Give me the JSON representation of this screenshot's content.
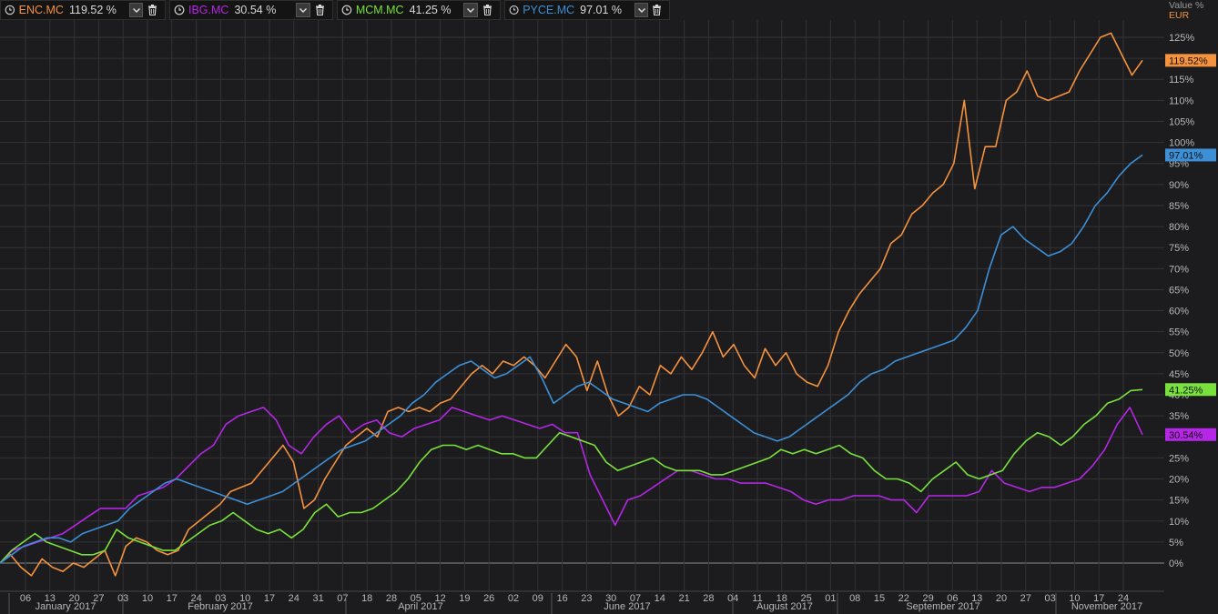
{
  "legend": [
    {
      "symbol": "ENC.MC",
      "value": "119.52 %",
      "color": "#f5923e"
    },
    {
      "symbol": "IBG.MC",
      "value": "30.54 %",
      "color": "#b526e6"
    },
    {
      "symbol": "MCM.MC",
      "value": "41.25 %",
      "color": "#79e13b"
    },
    {
      "symbol": "PYCE.MC",
      "value": "97.01 %",
      "color": "#3d8fd6"
    }
  ],
  "icons": {
    "clock": "clock-icon",
    "dropdown": "chevron-down-icon",
    "delete": "trash-icon"
  },
  "axis": {
    "y_title": "Value %",
    "currency": "EUR"
  },
  "chart_data": {
    "type": "line",
    "yunit": "%",
    "ylim": [
      -2,
      129
    ],
    "y_ticks": [
      "0%",
      "5%",
      "10%",
      "15%",
      "20%",
      "25%",
      "30%",
      "35%",
      "40%",
      "45%",
      "50%",
      "55%",
      "60%",
      "65%",
      "70%",
      "75%",
      "80%",
      "85%",
      "90%",
      "95%",
      "100%",
      "105%",
      "110%",
      "115%",
      "120%",
      "125%"
    ],
    "x_ticks": [
      "06",
      "13",
      "20",
      "27",
      "03",
      "10",
      "17",
      "24",
      "03",
      "10",
      "17",
      "24",
      "31",
      "07",
      "18",
      "28",
      "05",
      "12",
      "19",
      "26",
      "02",
      "09",
      "16",
      "23",
      "30",
      "07",
      "14",
      "21",
      "28",
      "04",
      "11",
      "18",
      "25",
      "01",
      "08",
      "15",
      "22",
      "29",
      "06",
      "13",
      "20",
      "27",
      "03",
      "10",
      "17",
      "24"
    ],
    "months": [
      "January 2017",
      "February 2017",
      "April 2017",
      "June 2017",
      "August 2017",
      "September 2017",
      "November 2017"
    ],
    "grid": true,
    "series": [
      {
        "name": "ENC.MC",
        "color": "#f5923e",
        "last_label": "119.52%",
        "values": [
          0,
          2,
          -1,
          -3,
          1,
          -1,
          -2,
          0,
          -1,
          1,
          3,
          -3,
          4,
          6,
          5,
          3,
          2,
          3,
          8,
          10,
          12,
          14,
          17,
          18,
          19,
          22,
          25,
          28,
          24,
          13,
          15,
          20,
          24,
          28,
          30,
          32,
          30,
          36,
          37,
          36,
          37,
          36,
          38,
          39,
          42,
          45,
          47,
          45,
          48,
          47,
          49,
          47,
          44,
          48,
          52,
          49,
          41,
          48,
          40,
          35,
          37,
          42,
          40,
          47,
          45,
          49,
          46,
          50,
          55,
          49,
          52,
          47,
          44,
          51,
          47,
          50,
          45,
          43,
          42,
          47,
          55,
          60,
          64,
          67,
          70,
          76,
          78,
          83,
          85,
          88,
          90,
          95,
          110,
          89,
          99,
          99,
          110,
          112,
          117,
          111,
          110,
          111,
          112,
          117,
          121,
          125,
          126,
          121,
          116,
          119.52
        ]
      },
      {
        "name": "IBG.MC",
        "color": "#b526e6",
        "last_label": "30.54%",
        "values": [
          0,
          3,
          4,
          5,
          6,
          7,
          9,
          11,
          13,
          13,
          13,
          16,
          17,
          18,
          20,
          23,
          26,
          28,
          33,
          35,
          36,
          37,
          34,
          28,
          26,
          30,
          33,
          35,
          31,
          33,
          34,
          31,
          30,
          32,
          33,
          34,
          37,
          36,
          35,
          34,
          35,
          34,
          33,
          32,
          33,
          31,
          31,
          21,
          15,
          9,
          15,
          16,
          18,
          20,
          22,
          22,
          21,
          20,
          20,
          19,
          19,
          19,
          18,
          17,
          15,
          14,
          15,
          15,
          16,
          16,
          16,
          15,
          15,
          12,
          16,
          16,
          16,
          16,
          17,
          22,
          19,
          18,
          17,
          18,
          18,
          19,
          20,
          23,
          27,
          33,
          37,
          30.54
        ]
      },
      {
        "name": "MCM.MC",
        "color": "#79e13b",
        "last_label": "41.25%",
        "values": [
          0,
          3,
          5,
          7,
          5,
          4,
          3,
          2,
          2,
          3,
          8,
          6,
          5,
          4,
          3,
          3,
          5,
          7,
          9,
          10,
          12,
          10,
          8,
          7,
          8,
          6,
          8,
          12,
          14,
          11,
          12,
          12,
          13,
          15,
          17,
          20,
          24,
          27,
          28,
          28,
          27,
          28,
          27,
          26,
          26,
          25,
          25,
          28,
          31,
          30,
          29,
          28,
          24,
          22,
          23,
          24,
          25,
          23,
          22,
          22,
          22,
          21,
          21,
          22,
          23,
          24,
          25,
          27,
          26,
          27,
          26,
          27,
          28,
          26,
          25,
          22,
          20,
          20,
          19,
          17,
          20,
          22,
          24,
          21,
          20,
          21,
          22,
          26,
          29,
          31,
          30,
          28,
          30,
          33,
          35,
          38,
          39,
          41,
          41.25
        ]
      },
      {
        "name": "PYCE.MC",
        "color": "#3d8fd6",
        "last_label": "97.01%",
        "values": [
          0,
          2,
          4,
          5,
          6,
          6,
          5,
          7,
          8,
          9,
          10,
          13,
          15,
          17,
          19,
          20,
          19,
          18,
          17,
          16,
          15,
          14,
          15,
          16,
          17,
          19,
          21,
          23,
          25,
          27,
          28,
          29,
          31,
          33,
          35,
          38,
          40,
          43,
          45,
          47,
          48,
          46,
          44,
          45,
          47,
          49,
          44,
          38,
          40,
          42,
          43,
          41,
          39,
          38,
          37,
          36,
          38,
          39,
          40,
          40,
          39,
          37,
          35,
          33,
          31,
          30,
          29,
          30,
          32,
          34,
          36,
          38,
          40,
          43,
          45,
          46,
          48,
          49,
          50,
          51,
          52,
          53,
          56,
          60,
          70,
          78,
          80,
          77,
          75,
          73,
          74,
          76,
          80,
          85,
          88,
          92,
          95,
          97.01
        ]
      }
    ]
  }
}
